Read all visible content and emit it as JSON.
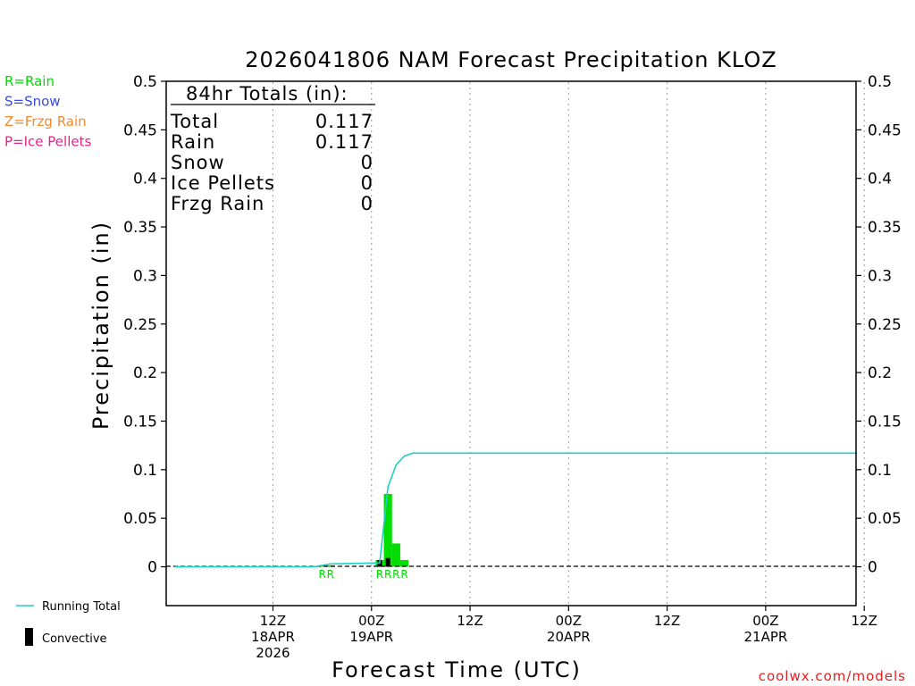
{
  "chart_data": {
    "type": "bar",
    "title": "2026041806 NAM Forecast Precipitation KLOZ",
    "xlabel": "Forecast Time (UTC)",
    "ylabel": "Precipitation (in)",
    "ylim": [
      -0.04,
      0.5
    ],
    "y_ticks": [
      "0.5",
      "0.45",
      "0.4",
      "0.35",
      "0.3",
      "0.25",
      "0.2",
      "0.15",
      "0.1",
      "0.05",
      "0"
    ],
    "y_tick_values": [
      0.5,
      0.45,
      0.4,
      0.35,
      0.3,
      0.25,
      0.2,
      0.15,
      0.1,
      0.05,
      0
    ],
    "xlim_hours": [
      -7,
      77
    ],
    "x_ticks": [
      {
        "hour": 6,
        "lines": [
          "12Z",
          "18APR",
          "2026"
        ]
      },
      {
        "hour": 18,
        "lines": [
          "00Z",
          "19APR"
        ]
      },
      {
        "hour": 30,
        "lines": [
          "12Z"
        ]
      },
      {
        "hour": 42,
        "lines": [
          "00Z",
          "20APR"
        ]
      },
      {
        "hour": 54,
        "lines": [
          "12Z"
        ]
      },
      {
        "hour": 66,
        "lines": [
          "00Z",
          "21APR"
        ]
      },
      {
        "hour": 78,
        "lines": [
          "12Z"
        ]
      }
    ],
    "bar_width_hours": 1,
    "bars": [
      {
        "hour": 12,
        "value": 0.0015,
        "convective": 0,
        "ptype": "R"
      },
      {
        "hour": 13,
        "value": 0.0015,
        "convective": 0,
        "ptype": "R"
      },
      {
        "hour": 19,
        "value": 0.007,
        "convective": 0.007,
        "ptype": "R"
      },
      {
        "hour": 20,
        "value": 0.075,
        "convective": 0.009,
        "ptype": "R"
      },
      {
        "hour": 21,
        "value": 0.024,
        "convective": 0,
        "ptype": "R"
      },
      {
        "hour": 22,
        "value": 0.007,
        "convective": 0,
        "ptype": "R"
      }
    ],
    "running_total": {
      "name": "Running Total",
      "hours": [
        -6,
        11,
        13,
        19,
        20,
        21,
        22,
        23,
        77
      ],
      "values": [
        0,
        0,
        0.003,
        0.004,
        0.082,
        0.105,
        0.114,
        0.117,
        0.117
      ]
    },
    "colors": {
      "rain": "#00dd00",
      "snow": "#3a4cdd",
      "frzg": "#f08a30",
      "ice": "#e6238c",
      "running_total": "#20d0c0",
      "convective": "#000000"
    }
  },
  "legend_ptype": [
    {
      "label": "R=Rain",
      "color": "#00dd00"
    },
    {
      "label": "S=Snow",
      "color": "#3a4cdd"
    },
    {
      "label": "Z=Frzg Rain",
      "color": "#f08a30"
    },
    {
      "label": "P=Ice Pellets",
      "color": "#e6238c"
    }
  ],
  "legend_bottom": {
    "running_total": "Running Total",
    "convective": "Convective"
  },
  "totals": {
    "header": "84hr Totals (in):",
    "rows": [
      {
        "label": "Total",
        "value": "0.117"
      },
      {
        "label": "Rain",
        "value": "0.117"
      },
      {
        "label": "Snow",
        "value": "0"
      },
      {
        "label": "Ice Pellets",
        "value": "0"
      },
      {
        "label": "Frzg Rain",
        "value": "0"
      }
    ]
  },
  "credit": {
    "text": "coolwx.com/models",
    "color": "#e02020"
  }
}
